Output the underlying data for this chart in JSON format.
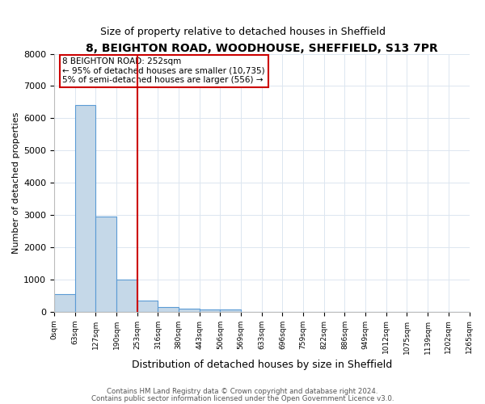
{
  "title1": "8, BEIGHTON ROAD, WOODHOUSE, SHEFFIELD, S13 7PR",
  "title2": "Size of property relative to detached houses in Sheffield",
  "xlabel": "Distribution of detached houses by size in Sheffield",
  "ylabel": "Number of detached properties",
  "bar_values": [
    550,
    6400,
    2950,
    1000,
    350,
    150,
    100,
    75,
    60,
    0,
    0,
    0,
    0,
    0,
    0,
    0,
    0,
    0,
    0,
    0
  ],
  "bar_color": "#c5d8e8",
  "bar_edge_color": "#5b9bd5",
  "x_labels": [
    "0sqm",
    "63sqm",
    "127sqm",
    "190sqm",
    "253sqm",
    "316sqm",
    "380sqm",
    "443sqm",
    "506sqm",
    "569sqm",
    "633sqm",
    "696sqm",
    "759sqm",
    "822sqm",
    "886sqm",
    "949sqm",
    "1012sqm",
    "1075sqm",
    "1139sqm",
    "1202sqm",
    "1265sqm"
  ],
  "vline_color": "#cc0000",
  "annotation_text": "8 BEIGHTON ROAD: 252sqm\n← 95% of detached houses are smaller (10,735)\n5% of semi-detached houses are larger (556) →",
  "annotation_box_color": "#cc0000",
  "ylim": [
    0,
    8000
  ],
  "yticks": [
    0,
    1000,
    2000,
    3000,
    4000,
    5000,
    6000,
    7000,
    8000
  ],
  "footer1": "Contains HM Land Registry data © Crown copyright and database right 2024.",
  "footer2": "Contains public sector information licensed under the Open Government Licence v3.0.",
  "bg_color": "#ffffff",
  "grid_color": "#dce6f0",
  "title1_fontsize": 10,
  "title2_fontsize": 9
}
